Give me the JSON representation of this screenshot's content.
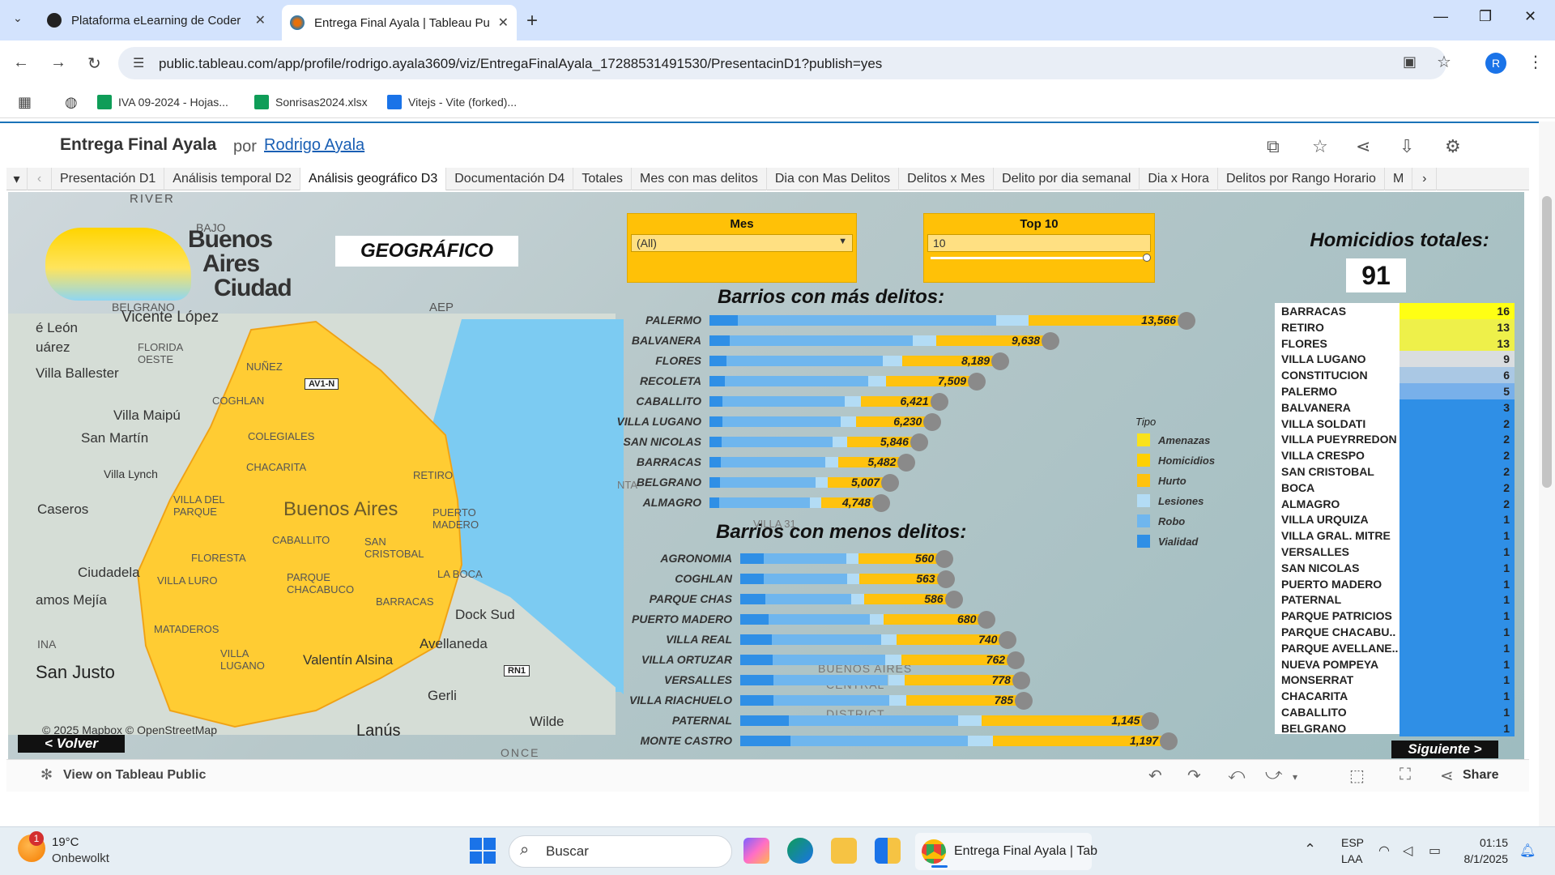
{
  "browser": {
    "tabs": [
      {
        "title": "Plataforma eLearning de Coder",
        "favicon": "coderhouse-icon"
      },
      {
        "title": "Entrega Final Ayala | Tableau Pu",
        "favicon": "tableau-icon"
      }
    ],
    "url": "public.tableau.com/app/profile/rodrigo.ayala3609/viz/EntregaFinalAyala_17288531491530/PresentacinD1?publish=yes",
    "profile_initial": "R",
    "bookmarks": [
      "IVA 09-2024 - Hojas...",
      "Sonrisas2024.xlsx",
      "Vitejs - Vite (forked)..."
    ]
  },
  "tableau": {
    "title": "Entrega Final Ayala",
    "por": "por",
    "author": "Rodrigo Ayala",
    "sheets": [
      "Presentación D1",
      "Análisis temporal D2",
      "Análisis geográfico D3",
      "Documentación D4",
      "Totales",
      "Mes con mas delitos",
      "Dia con Mas Delitos",
      "Delitos x Mes",
      "Delito por dia semanal",
      "Dia x Hora",
      "Delitos por Rango Horario",
      "M"
    ],
    "active_sheet": "Análisis geográfico D3",
    "footer": {
      "view_on": "View on Tableau Public",
      "share": "Share"
    }
  },
  "dashboard": {
    "logo": {
      "line1": "Buenos",
      "line2": "Aires",
      "line3": "Ciudad"
    },
    "geo_label": "GEOGRÁFICO",
    "filters": {
      "mes": {
        "title": "Mes",
        "value": "(All)"
      },
      "top": {
        "title": "Top 10",
        "value": "10"
      }
    },
    "homicidios": {
      "title": "Homicidios totales:",
      "value": "91"
    },
    "map_labels": [
      "RIVER",
      "BAJO",
      "BELGRANO",
      "Vicente López",
      "é León",
      "uárez",
      "FLORIDA OESTE",
      "Villa Ballester",
      "NUÑEZ",
      "AV1-N",
      "AEP",
      "COGHLAN",
      "Villa Maipú",
      "COLEGIALES",
      "San Martín",
      "CHACARITA",
      "RETIRO",
      "Villa Lynch",
      "VILLA DEL PARQUE",
      "Buenos Aires",
      "PUERTO MADERO",
      "Caseros",
      "CABALLITO",
      "SAN CRISTOBAL",
      "FLORESTA",
      "Ciudadela",
      "VILLA LURO",
      "PARQUE CHACABUCO",
      "LA BOCA",
      "amos Mejía",
      "MATADEROS",
      "BARRACAS",
      "Dock Sud",
      "INA",
      "Avellaneda",
      "VILLA LUGANO",
      "Valentín Alsina",
      "RN1",
      "San Justo",
      "Gerli",
      "Wilde",
      "Lanús",
      "ONCE",
      "NTA",
      "VILLA 31",
      "BUENOS AIRES",
      "CENTRAL",
      "DISTRICT"
    ],
    "attribution": "© 2025 Mapbox  © OpenStreetMap",
    "volver": "< Volver",
    "siguiente": "Siguiente >",
    "legend": {
      "title": "Tipo",
      "items": [
        {
          "label": "Amenazas",
          "color": "#f9e21b"
        },
        {
          "label": "Homicidios",
          "color": "#ffd000"
        },
        {
          "label": "Hurto",
          "color": "#ffc20e"
        },
        {
          "label": "Lesiones",
          "color": "#b3dcf5"
        },
        {
          "label": "Robo",
          "color": "#6fb6ee"
        },
        {
          "label": "Vialidad",
          "color": "#2f8fe6"
        }
      ]
    },
    "homicidios_table": [
      {
        "name": "BARRACAS",
        "value": "16",
        "color": "#ffff14"
      },
      {
        "name": "RETIRO",
        "value": "13",
        "color": "#eef04a"
      },
      {
        "name": "FLORES",
        "value": "13",
        "color": "#eef04a"
      },
      {
        "name": "VILLA LUGANO",
        "value": "9",
        "color": "#d9dde0"
      },
      {
        "name": "CONSTITUCION",
        "value": "6",
        "color": "#aac8e4"
      },
      {
        "name": "PALERMO",
        "value": "5",
        "color": "#78b0ea"
      },
      {
        "name": "BALVANERA",
        "value": "3",
        "color": "#2f8fe6"
      },
      {
        "name": "VILLA SOLDATI",
        "value": "2",
        "color": "#2f8fe6"
      },
      {
        "name": "VILLA PUEYRREDON",
        "value": "2",
        "color": "#2f8fe6"
      },
      {
        "name": "VILLA CRESPO",
        "value": "2",
        "color": "#2f8fe6"
      },
      {
        "name": "SAN CRISTOBAL",
        "value": "2",
        "color": "#2f8fe6"
      },
      {
        "name": "BOCA",
        "value": "2",
        "color": "#2f8fe6"
      },
      {
        "name": "ALMAGRO",
        "value": "2",
        "color": "#2f8fe6"
      },
      {
        "name": "VILLA URQUIZA",
        "value": "1",
        "color": "#2f8fe6"
      },
      {
        "name": "VILLA GRAL. MITRE",
        "value": "1",
        "color": "#2f8fe6"
      },
      {
        "name": "VERSALLES",
        "value": "1",
        "color": "#2f8fe6"
      },
      {
        "name": "SAN NICOLAS",
        "value": "1",
        "color": "#2f8fe6"
      },
      {
        "name": "PUERTO MADERO",
        "value": "1",
        "color": "#2f8fe6"
      },
      {
        "name": "PATERNAL",
        "value": "1",
        "color": "#2f8fe6"
      },
      {
        "name": "PARQUE PATRICIOS",
        "value": "1",
        "color": "#2f8fe6"
      },
      {
        "name": "PARQUE CHACABU..",
        "value": "1",
        "color": "#2f8fe6"
      },
      {
        "name": "PARQUE AVELLANE..",
        "value": "1",
        "color": "#2f8fe6"
      },
      {
        "name": "NUEVA POMPEYA",
        "value": "1",
        "color": "#2f8fe6"
      },
      {
        "name": "MONSERRAT",
        "value": "1",
        "color": "#2f8fe6"
      },
      {
        "name": "CHACARITA",
        "value": "1",
        "color": "#2f8fe6"
      },
      {
        "name": "CABALLITO",
        "value": "1",
        "color": "#2f8fe6"
      },
      {
        "name": "BELGRANO",
        "value": "1",
        "color": "#2f8fe6"
      }
    ]
  },
  "chart_data": [
    {
      "type": "bar",
      "title": "Barrios con más delitos:",
      "categories": [
        "PALERMO",
        "BALVANERA",
        "FLORES",
        "RECOLETA",
        "CABALLITO",
        "VILLA LUGANO",
        "SAN NICOLAS",
        "BARRACAS",
        "BELGRANO",
        "ALMAGRO"
      ],
      "values": [
        13566,
        9638,
        8189,
        7509,
        6421,
        6230,
        5846,
        5482,
        5007,
        4748
      ],
      "value_labels": [
        "13,566",
        "9,638",
        "8,189",
        "7,509",
        "6,421",
        "6,230",
        "5,846",
        "5,482",
        "5,007",
        "4,748"
      ],
      "stack_colors": [
        "#2f8fe6",
        "#6fb6ee",
        "#b3dcf5",
        "#ffc20e"
      ],
      "stack_fractions": [
        0.06,
        0.55,
        0.07,
        0.32
      ]
    },
    {
      "type": "bar",
      "title": "Barrios con menos delitos:",
      "categories": [
        "AGRONOMIA",
        "COGHLAN",
        "PARQUE CHAS",
        "PUERTO MADERO",
        "VILLA REAL",
        "VILLA ORTUZAR",
        "VERSALLES",
        "VILLA RIACHUELO",
        "PATERNAL",
        "MONTE CASTRO"
      ],
      "values": [
        560,
        563,
        586,
        680,
        740,
        762,
        778,
        785,
        1145,
        1197
      ],
      "value_labels": [
        "560",
        "563",
        "586",
        "680",
        "740",
        "762",
        "778",
        "785",
        "1,145",
        "1,197"
      ],
      "stack_colors": [
        "#2f8fe6",
        "#6fb6ee",
        "#b3dcf5",
        "#ffc20e"
      ],
      "stack_fractions": [
        0.12,
        0.42,
        0.06,
        0.4
      ]
    }
  ],
  "taskbar": {
    "weather_badge": "1",
    "weather_temp": "19°C",
    "weather_desc": "Onbewolkt",
    "search": "Buscar",
    "active_app": "Entrega Final Ayala | Tab",
    "lang1": "ESP",
    "lang2": "LAA",
    "time": "01:15",
    "date": "8/1/2025"
  }
}
